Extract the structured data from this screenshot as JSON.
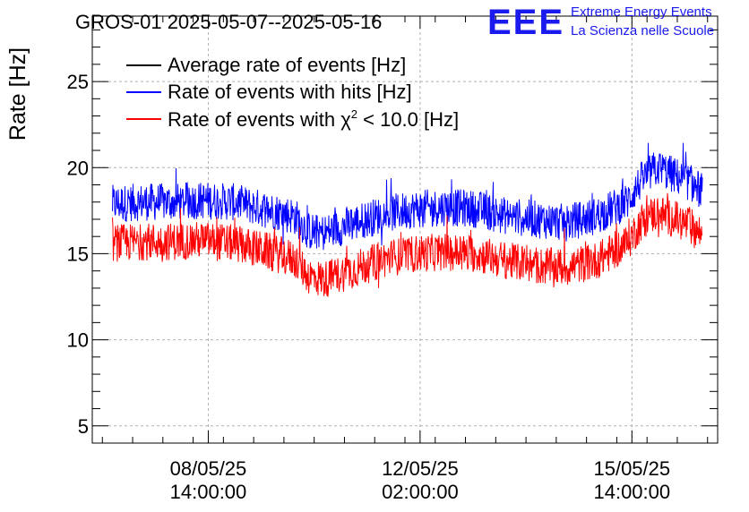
{
  "header": {
    "title": "GROS-01 2025-05-07--2025-05-16",
    "logo_text": "EEE",
    "logo_line1": "Extreme Energy Events",
    "logo_line2": "La Scienza nelle Scuole"
  },
  "colors": {
    "average": "#000000",
    "hits": "#0000ff",
    "chi2": "#ff0000",
    "logo": "#1a1aee",
    "grid": "#b0b0b0"
  },
  "chart_data": {
    "type": "line",
    "title": "GROS-01 2025-05-07--2025-05-16",
    "ylabel": "Rate [Hz]",
    "xlabel": "",
    "ylim": [
      4,
      28.8
    ],
    "yticks": [
      5,
      10,
      15,
      20,
      25
    ],
    "xlim": [
      "2025-05-06 16:00",
      "2025-05-17 00:00"
    ],
    "xticks": [
      {
        "at": "2025-05-08 14:00",
        "line1": "08/05/25",
        "line2": "14:00:00"
      },
      {
        "at": "2025-05-12 02:00",
        "line1": "12/05/25",
        "line2": "02:00:00"
      },
      {
        "at": "2025-05-15 14:00",
        "line1": "15/05/25",
        "line2": "14:00:00"
      }
    ],
    "grid": true,
    "legend_position": "top-left",
    "legend": [
      {
        "label": "Average rate of events [Hz]",
        "color": "#000000"
      },
      {
        "label": "Rate of events with hits [Hz]",
        "color": "#0000ff"
      },
      {
        "label_prefix": "Rate of events with ",
        "label_symbol": "χ",
        "label_sup": "2",
        "label_suffix": " < 10.0 [Hz]",
        "color": "#ff0000"
      }
    ],
    "series": [
      {
        "name": "Rate of events with hits [Hz]",
        "color": "#0000ff",
        "band": 1.1,
        "x": [
          "2025-05-07 00:00",
          "2025-05-07 12:00",
          "2025-05-08 00:00",
          "2025-05-08 12:00",
          "2025-05-09 00:00",
          "2025-05-09 12:00",
          "2025-05-10 00:00",
          "2025-05-10 06:00",
          "2025-05-10 12:00",
          "2025-05-11 00:00",
          "2025-05-11 12:00",
          "2025-05-12 00:00",
          "2025-05-12 12:00",
          "2025-05-13 00:00",
          "2025-05-13 12:00",
          "2025-05-14 00:00",
          "2025-05-14 12:00",
          "2025-05-15 00:00",
          "2025-05-15 12:00",
          "2025-05-15 18:00",
          "2025-05-16 00:00",
          "2025-05-16 12:00",
          "2025-05-16 18:00"
        ],
        "y": [
          17.9,
          18.0,
          18.0,
          18.1,
          18.0,
          17.6,
          17.2,
          16.3,
          16.2,
          16.8,
          17.3,
          17.6,
          17.7,
          17.6,
          17.2,
          17.0,
          16.8,
          17.2,
          18.0,
          19.3,
          20.0,
          19.2,
          18.6
        ]
      },
      {
        "name": "Rate of events with χ² < 10.0 [Hz]",
        "color": "#ff0000",
        "band": 1.1,
        "x": [
          "2025-05-07 00:00",
          "2025-05-07 12:00",
          "2025-05-08 00:00",
          "2025-05-08 12:00",
          "2025-05-09 00:00",
          "2025-05-09 12:00",
          "2025-05-10 00:00",
          "2025-05-10 06:00",
          "2025-05-10 12:00",
          "2025-05-11 00:00",
          "2025-05-11 12:00",
          "2025-05-12 00:00",
          "2025-05-12 12:00",
          "2025-05-13 00:00",
          "2025-05-13 12:00",
          "2025-05-14 00:00",
          "2025-05-14 12:00",
          "2025-05-15 00:00",
          "2025-05-15 12:00",
          "2025-05-15 18:00",
          "2025-05-16 00:00",
          "2025-05-16 12:00",
          "2025-05-16 18:00"
        ],
        "y": [
          15.6,
          15.7,
          15.7,
          15.8,
          15.6,
          15.2,
          14.7,
          13.7,
          13.5,
          14.1,
          14.7,
          15.0,
          15.1,
          15.0,
          14.6,
          14.3,
          14.2,
          14.6,
          15.6,
          16.9,
          17.4,
          16.7,
          16.1
        ]
      }
    ]
  }
}
